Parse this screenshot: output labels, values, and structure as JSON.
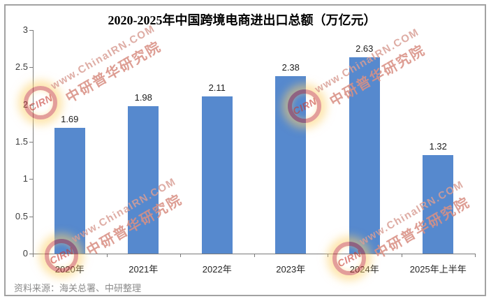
{
  "chart_data": {
    "type": "bar",
    "title": "2020-2025年中国跨境电商进出口总额（万亿元）",
    "categories": [
      "2020年",
      "2021年",
      "2022年",
      "2023年",
      "2024年",
      "2025年上半年"
    ],
    "values": [
      1.69,
      1.98,
      2.11,
      2.38,
      2.63,
      1.32
    ],
    "value_labels": [
      "1.69",
      "1.98",
      "2.11",
      "2.38",
      "2.63",
      "1.32"
    ],
    "ylim": [
      0,
      3
    ],
    "ytick_labels": [
      "0",
      "0.5",
      "1",
      "1.5",
      "2",
      "2.5",
      "3"
    ],
    "grid": false,
    "legend": null,
    "bar_color": "#5689ce",
    "axis_color": "#7a7a7a"
  },
  "source": {
    "text": "资料来源：海关总署、中研整理"
  },
  "watermark": {
    "logo_text": "CIRN",
    "line1": "www.ChinaIRN.COM",
    "line2": "中研普华研究院",
    "color": "#d89e94"
  },
  "frame": {
    "border_color": "#a2a2a2",
    "background": "#ffffff"
  }
}
